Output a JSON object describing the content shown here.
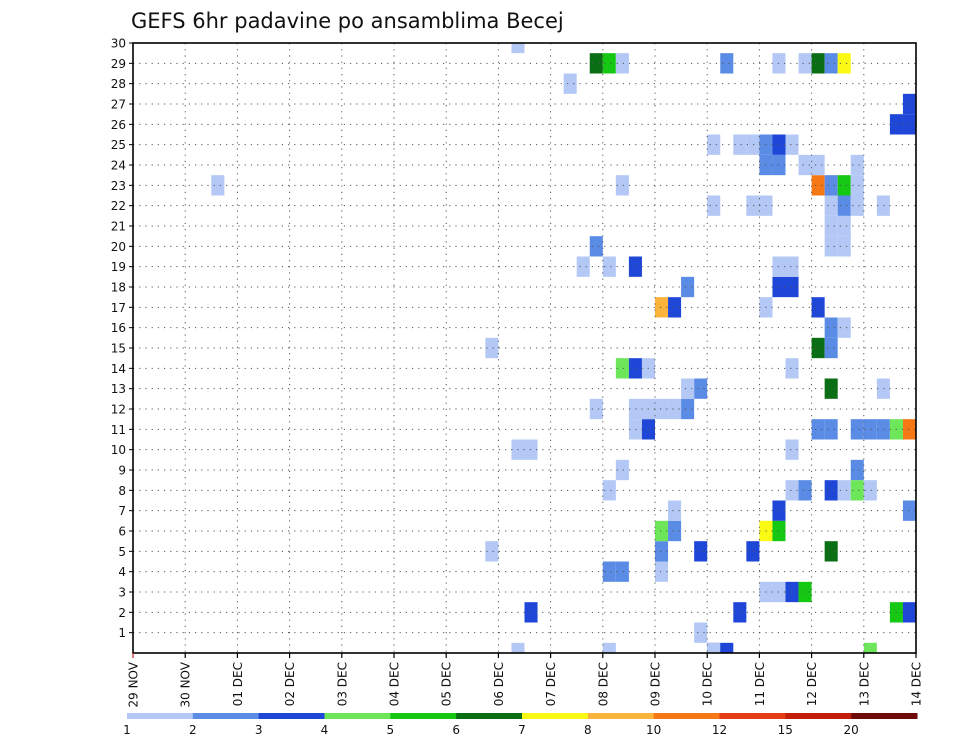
{
  "chart_data": {
    "type": "heatmap",
    "title": "GEFS 6hr padavine po ansamblima Becej",
    "xlabel": "",
    "ylabel": "",
    "x_ticks": [
      "29 NOV",
      "30 NOV",
      "01 DEC",
      "02 DEC",
      "03 DEC",
      "04 DEC",
      "05 DEC",
      "06 DEC",
      "07 DEC",
      "08 DEC",
      "09 DEC",
      "10 DEC",
      "11 DEC",
      "12 DEC",
      "13 DEC",
      "14 DEC"
    ],
    "y_ticks": [
      1,
      2,
      3,
      4,
      5,
      6,
      7,
      8,
      9,
      10,
      11,
      12,
      13,
      14,
      15,
      16,
      17,
      18,
      19,
      20,
      21,
      22,
      23,
      24,
      25,
      26,
      27,
      28,
      29,
      30
    ],
    "xlim": [
      0,
      60
    ],
    "ylim": [
      0,
      30
    ],
    "grid": true,
    "colorbar": {
      "labels": [
        "1",
        "2",
        "3",
        "4",
        "5",
        "6",
        "7",
        "8",
        "10",
        "12",
        "15",
        "20"
      ],
      "colors": [
        "#b4c8f5",
        "#5a8ce6",
        "#1e46d7",
        "#6ee65a",
        "#14c814",
        "#0a6e14",
        "#fafa14",
        "#fab43c",
        "#f57814",
        "#e63c14",
        "#c31e0a",
        "#6e0a0a"
      ]
    },
    "cells": [
      [
        29.5,
        0,
        1
      ],
      [
        36.5,
        0,
        1
      ],
      [
        44.5,
        0,
        2
      ],
      [
        44.5,
        0,
        1
      ],
      [
        45.5,
        0,
        3
      ],
      [
        56.5,
        0,
        4
      ],
      [
        43.5,
        1,
        1
      ],
      [
        30.5,
        2,
        3
      ],
      [
        46.5,
        2,
        3
      ],
      [
        58.5,
        2,
        5
      ],
      [
        59.5,
        2,
        3
      ],
      [
        60.5,
        2,
        1
      ],
      [
        48.5,
        3,
        1
      ],
      [
        49.5,
        3,
        1
      ],
      [
        50.5,
        3,
        3
      ],
      [
        51.5,
        3,
        5
      ],
      [
        36.5,
        4,
        2
      ],
      [
        37.5,
        4,
        2
      ],
      [
        40.5,
        4,
        1
      ],
      [
        27.5,
        5,
        1
      ],
      [
        40.5,
        5,
        2
      ],
      [
        43.5,
        5,
        3
      ],
      [
        47.5,
        5,
        3
      ],
      [
        53.5,
        5,
        6
      ],
      [
        40.5,
        6,
        4
      ],
      [
        41.5,
        6,
        2
      ],
      [
        48.5,
        6,
        7
      ],
      [
        49.5,
        6,
        5
      ],
      [
        41.5,
        7,
        1
      ],
      [
        49.5,
        7,
        3
      ],
      [
        59.5,
        7,
        2
      ],
      [
        36.5,
        8,
        1
      ],
      [
        50.5,
        8,
        1
      ],
      [
        51.5,
        8,
        2
      ],
      [
        53.5,
        8,
        3
      ],
      [
        54.5,
        8,
        1
      ],
      [
        55.5,
        8,
        4
      ],
      [
        56.5,
        8,
        1
      ],
      [
        37.5,
        9,
        1
      ],
      [
        55.5,
        9,
        2
      ],
      [
        29.5,
        10,
        1
      ],
      [
        30.5,
        10,
        1
      ],
      [
        50.5,
        10,
        1
      ],
      [
        38.5,
        11,
        1
      ],
      [
        39.5,
        11,
        3
      ],
      [
        52.5,
        11,
        2
      ],
      [
        53.5,
        11,
        2
      ],
      [
        55.5,
        11,
        2
      ],
      [
        56.5,
        11,
        2
      ],
      [
        57.5,
        11,
        2
      ],
      [
        58.5,
        11,
        4
      ],
      [
        59.5,
        11,
        9
      ],
      [
        35.5,
        12,
        1
      ],
      [
        38.5,
        12,
        1
      ],
      [
        39.5,
        12,
        1
      ],
      [
        40.5,
        12,
        1
      ],
      [
        41.5,
        12,
        1
      ],
      [
        42.5,
        12,
        2
      ],
      [
        42.5,
        13,
        1
      ],
      [
        43.5,
        13,
        2
      ],
      [
        53.5,
        13,
        6
      ],
      [
        57.5,
        13,
        1
      ],
      [
        37.5,
        14,
        4
      ],
      [
        38.5,
        14,
        3
      ],
      [
        39.5,
        14,
        1
      ],
      [
        50.5,
        14,
        1
      ],
      [
        27.5,
        15,
        1
      ],
      [
        52.5,
        15,
        6
      ],
      [
        53.5,
        15,
        2
      ],
      [
        53.5,
        16,
        2
      ],
      [
        54.5,
        16,
        1
      ],
      [
        40.5,
        17,
        8
      ],
      [
        41.5,
        17,
        3
      ],
      [
        48.5,
        17,
        1
      ],
      [
        52.5,
        17,
        3
      ],
      [
        42.5,
        18,
        2
      ],
      [
        49.5,
        18,
        3
      ],
      [
        50.5,
        18,
        3
      ],
      [
        34.5,
        19,
        1
      ],
      [
        36.5,
        19,
        1
      ],
      [
        38.5,
        19,
        3
      ],
      [
        49.5,
        19,
        1
      ],
      [
        50.5,
        19,
        1
      ],
      [
        35.5,
        20,
        2
      ],
      [
        53.5,
        20,
        1
      ],
      [
        54.5,
        20,
        1
      ],
      [
        53.5,
        21,
        1
      ],
      [
        54.5,
        21,
        1
      ],
      [
        44.5,
        22,
        1
      ],
      [
        47.5,
        22,
        1
      ],
      [
        48.5,
        22,
        1
      ],
      [
        53.5,
        22,
        1
      ],
      [
        54.5,
        22,
        2
      ],
      [
        55.5,
        22,
        1
      ],
      [
        57.5,
        22,
        1
      ],
      [
        6.5,
        23,
        1
      ],
      [
        37.5,
        23,
        1
      ],
      [
        52.5,
        23,
        9
      ],
      [
        53.5,
        23,
        2
      ],
      [
        54.5,
        23,
        5
      ],
      [
        55.5,
        23,
        1
      ],
      [
        48.5,
        24,
        2
      ],
      [
        49.5,
        24,
        2
      ],
      [
        51.5,
        24,
        1
      ],
      [
        52.5,
        24,
        1
      ],
      [
        55.5,
        24,
        1
      ],
      [
        44.5,
        25,
        1
      ],
      [
        46.5,
        25,
        1
      ],
      [
        47.5,
        25,
        1
      ],
      [
        48.5,
        25,
        2
      ],
      [
        49.5,
        25,
        3
      ],
      [
        50.5,
        25,
        1
      ],
      [
        58.5,
        26,
        3
      ],
      [
        59.5,
        26,
        3
      ],
      [
        59.5,
        27,
        3
      ],
      [
        33.5,
        28,
        1
      ],
      [
        35.5,
        29,
        6
      ],
      [
        36.5,
        29,
        5
      ],
      [
        37.5,
        29,
        1
      ],
      [
        45.5,
        29,
        2
      ],
      [
        49.5,
        29,
        1
      ],
      [
        51.5,
        29,
        1
      ],
      [
        52.5,
        29,
        6
      ],
      [
        53.5,
        29,
        2
      ],
      [
        54.5,
        29,
        7
      ],
      [
        29.5,
        30,
        1
      ]
    ]
  }
}
